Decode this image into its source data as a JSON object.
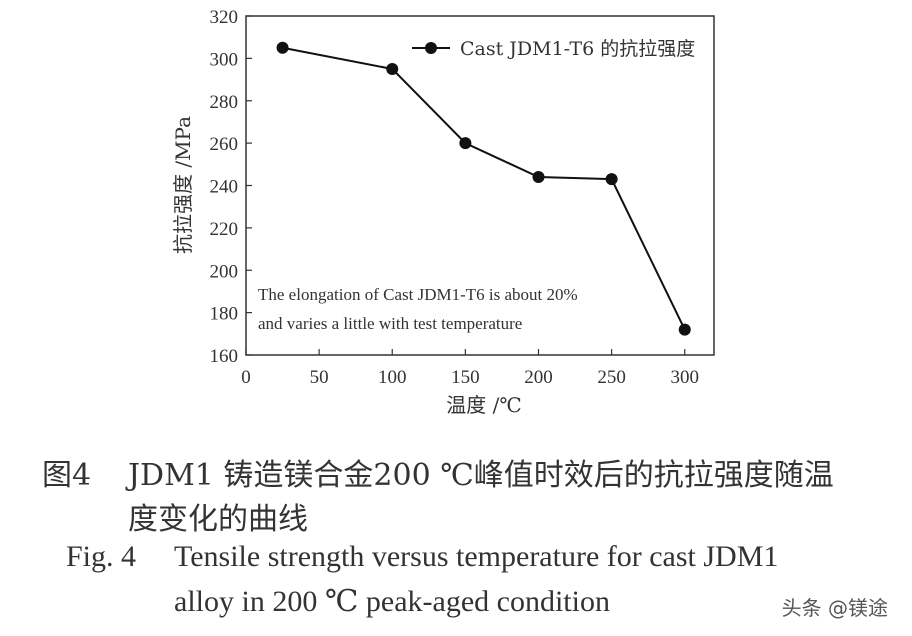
{
  "chart_data": {
    "type": "line",
    "xlabel": "温度 /℃",
    "ylabel": "抗拉强度 /MPa",
    "xlim": [
      0,
      320
    ],
    "ylim": [
      160,
      320
    ],
    "xticks": [
      0,
      50,
      100,
      150,
      200,
      250,
      300
    ],
    "yticks": [
      160,
      180,
      200,
      220,
      240,
      260,
      280,
      300,
      320
    ],
    "grid": false,
    "legend_position": "top-right",
    "series": [
      {
        "name": "Cast JDM1-T6 的抗拉强度",
        "x": [
          25,
          100,
          150,
          200,
          250,
          300
        ],
        "y": [
          305,
          295,
          260,
          244,
          243,
          172
        ],
        "color": "#111111"
      }
    ],
    "annotation": [
      "The elongation of Cast JDM1-T6 is about 20%",
      "and varies a little with test temperature"
    ]
  },
  "caption": {
    "cn_label": "图4",
    "cn_line1": "JDM1 铸造镁合金200 ℃峰值时效后的抗拉强度随温",
    "cn_line2": "度变化的曲线",
    "en_label": "Fig. 4",
    "en_line1": "Tensile strength versus temperature for cast JDM1",
    "en_line2": "alloy in 200 ℃ peak-aged condition"
  },
  "watermark": "头条 @镁途"
}
